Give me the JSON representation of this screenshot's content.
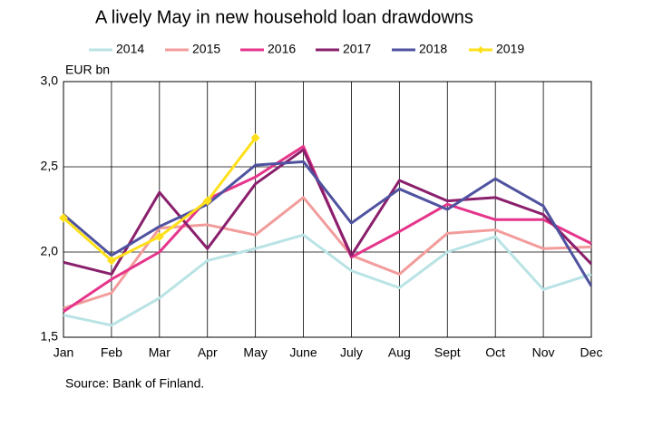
{
  "chart_data": {
    "type": "line",
    "title": "A lively May in new household loan drawdowns",
    "y_label": "EUR bn",
    "source": "Source: Bank of Finland.",
    "categories": [
      "Jan",
      "Feb",
      "Mar",
      "Apr",
      "May",
      "June",
      "July",
      "Aug",
      "Sept",
      "Oct",
      "Nov",
      "Dec"
    ],
    "ylim": [
      1.5,
      3.0
    ],
    "yticks": [
      {
        "value": 1.5,
        "label": "1,5"
      },
      {
        "value": 2.0,
        "label": "2,0"
      },
      {
        "value": 2.5,
        "label": "2,5"
      },
      {
        "value": 3.0,
        "label": "3,0"
      }
    ],
    "grid": true,
    "legend": "top",
    "series": [
      {
        "name": "2014",
        "color": "#b9e3e4",
        "values": [
          1.63,
          1.57,
          1.73,
          1.95,
          2.02,
          2.1,
          1.89,
          1.79,
          2.0,
          2.09,
          1.78,
          1.87
        ]
      },
      {
        "name": "2015",
        "color": "#f29c9c",
        "values": [
          1.67,
          1.76,
          2.14,
          2.16,
          2.1,
          2.32,
          1.98,
          1.87,
          2.11,
          2.13,
          2.02,
          2.03
        ]
      },
      {
        "name": "2016",
        "color": "#e5358b",
        "values": [
          1.65,
          1.84,
          2.0,
          2.31,
          2.44,
          2.62,
          1.97,
          2.12,
          2.28,
          2.19,
          2.19,
          2.05
        ]
      },
      {
        "name": "2017",
        "color": "#8a1f6c",
        "values": [
          1.94,
          1.87,
          2.35,
          2.02,
          2.4,
          2.6,
          1.98,
          2.42,
          2.3,
          2.32,
          2.22,
          1.93
        ]
      },
      {
        "name": "2018",
        "color": "#4f529f",
        "values": [
          2.22,
          1.98,
          2.15,
          2.28,
          2.51,
          2.53,
          2.17,
          2.37,
          2.25,
          2.43,
          2.27,
          1.8
        ]
      },
      {
        "name": "2019",
        "color": "#ffe01a",
        "marker": "diamond",
        "values": [
          2.2,
          1.95,
          2.09,
          2.3,
          2.67,
          null,
          null,
          null,
          null,
          null,
          null,
          null
        ]
      }
    ]
  }
}
